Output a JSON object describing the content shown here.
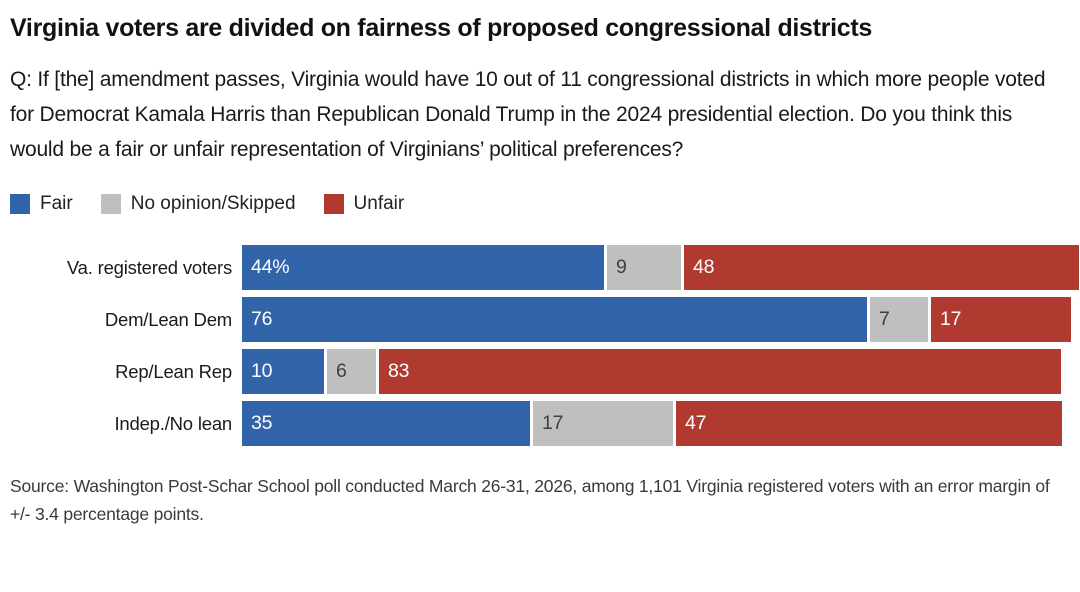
{
  "title": "Virginia voters are divided on fairness of proposed congressional districts",
  "question": "Q: If [the] amendment passes, Virginia would have 10 out of 11 congressional districts in which more people voted for Democrat Kamala Harris than Republican Donald Trump in the 2024 presidential election. Do you think this would be a fair or unfair representation of Virginians’ political preferences?",
  "source": "Source: Washington Post-Schar School poll conducted March 26-31, 2026, among 1,101 Virginia registered voters with an error margin of +/- 3.4 percentage points.",
  "colors": {
    "fair_blue": "#3264aa",
    "no_opinion_gray": "#bfbfbf",
    "unfair_red": "#b03a30",
    "background": "#ffffff"
  },
  "chart_data": {
    "type": "bar",
    "orientation": "horizontal",
    "stacked": true,
    "legend_position": "top",
    "grid": false,
    "xlim": [
      0,
      101
    ],
    "categories": [
      "Va. registered voters",
      "Dem/Lean Dem",
      "Rep/Lean Rep",
      "Indep./No lean"
    ],
    "series": [
      {
        "name": "Fair",
        "color": "#3264aa",
        "label_color": "#ffffff",
        "values": [
          44,
          76,
          10,
          35
        ]
      },
      {
        "name": "No opinion/Skipped",
        "color": "#bfbfbf",
        "label_color": "#3f3f3f",
        "values": [
          9,
          7,
          6,
          17
        ]
      },
      {
        "name": "Unfair",
        "color": "#b03a30",
        "label_color": "#ffffff",
        "values": [
          48,
          17,
          83,
          47
        ]
      }
    ],
    "value_labels": [
      [
        "44%",
        "9",
        "48"
      ],
      [
        "76",
        "7",
        "17"
      ],
      [
        "10",
        "6",
        "83"
      ],
      [
        "35",
        "17",
        "47"
      ]
    ]
  }
}
